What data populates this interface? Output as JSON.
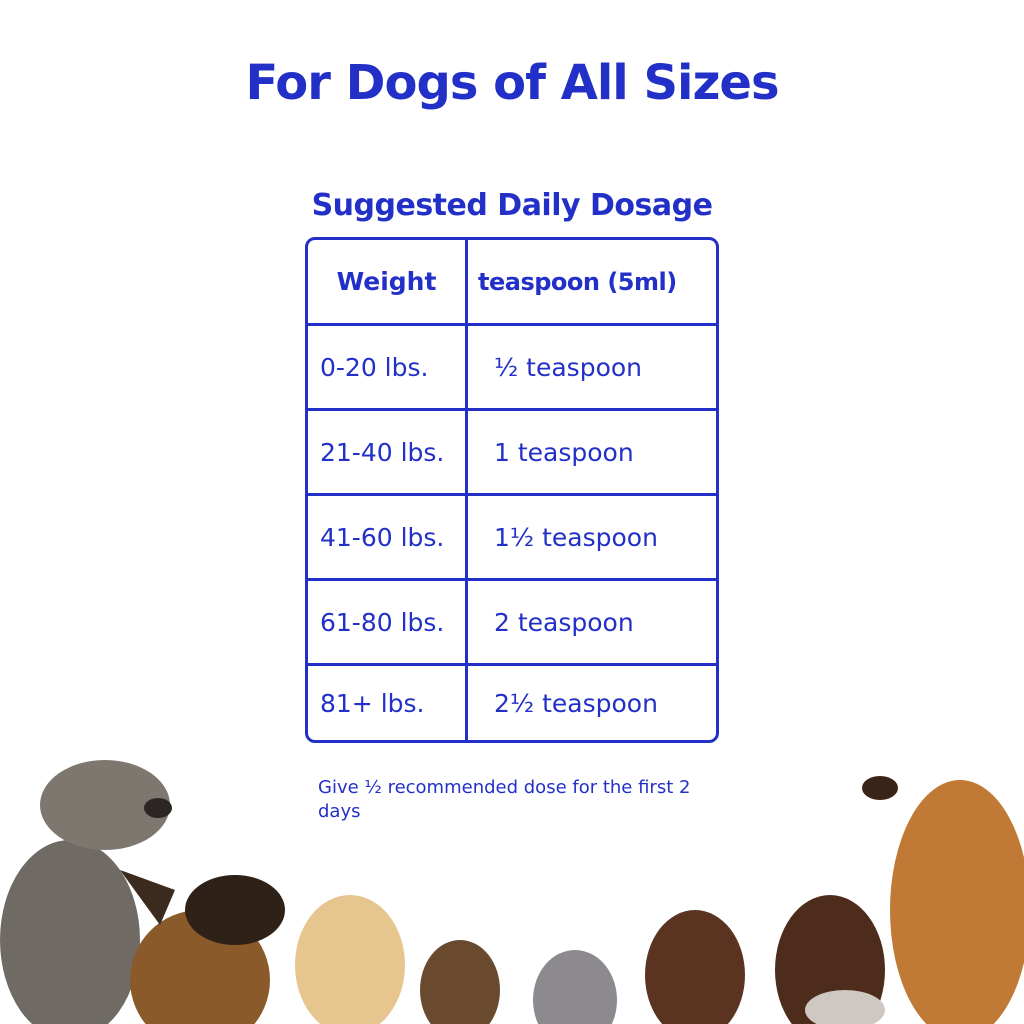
{
  "title": "For Dogs of All Sizes",
  "subtitle": "Suggested Daily Dosage",
  "table": {
    "headers": [
      "Weight",
      "teaspoon (5ml)"
    ],
    "rows": [
      [
        "0-20 lbs.",
        "½ teaspoon"
      ],
      [
        "21-40 lbs.",
        "1 teaspoon"
      ],
      [
        "41-60 lbs.",
        "1½ teaspoon"
      ],
      [
        "61-80 lbs.",
        "2 teaspoon"
      ],
      [
        "81+ lbs.",
        "2½ teaspoon"
      ]
    ]
  },
  "note": "Give ½ recommended dose for the first 2 days",
  "colors": {
    "accent": "#2330c8",
    "background": "#ffffff"
  }
}
